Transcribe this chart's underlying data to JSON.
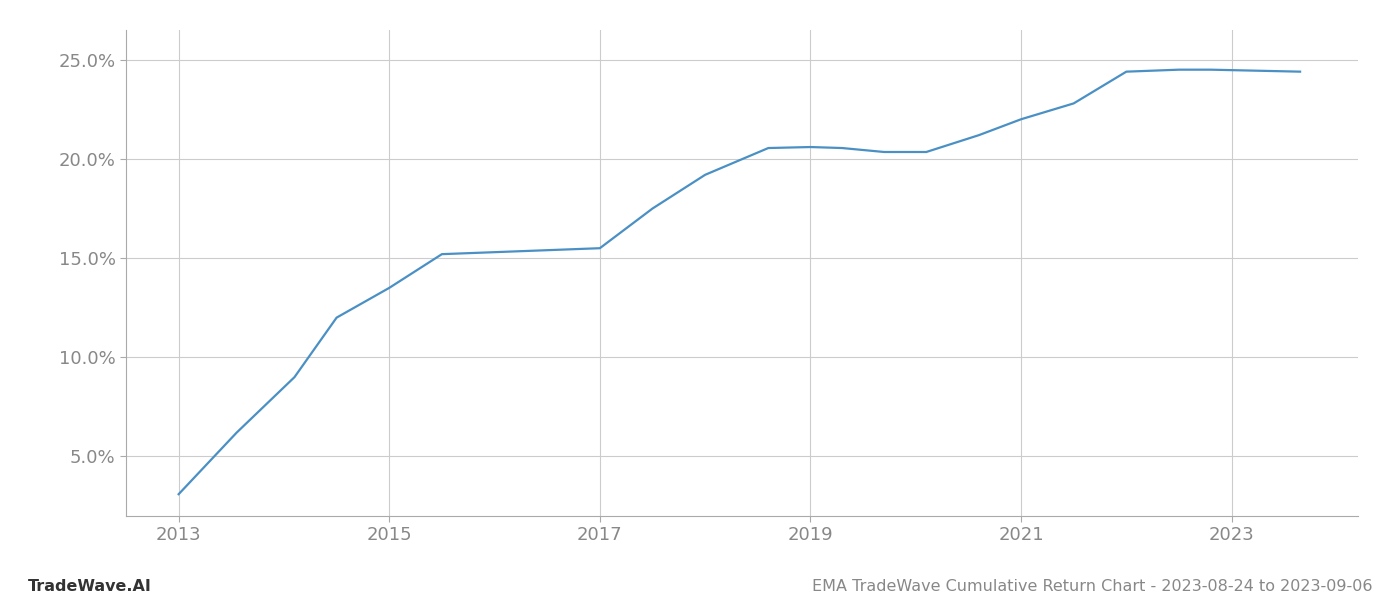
{
  "x_years": [
    2013.0,
    2013.55,
    2014.1,
    2014.5,
    2015.0,
    2015.5,
    2016.0,
    2016.5,
    2017.0,
    2017.5,
    2018.0,
    2018.6,
    2019.0,
    2019.3,
    2019.7,
    2020.1,
    2020.6,
    2021.0,
    2021.5,
    2022.0,
    2022.5,
    2022.8,
    2023.65
  ],
  "y_values": [
    3.1,
    6.2,
    9.0,
    12.0,
    13.5,
    15.2,
    15.3,
    15.4,
    15.5,
    17.5,
    19.2,
    20.55,
    20.6,
    20.55,
    20.35,
    20.35,
    21.2,
    22.0,
    22.8,
    24.4,
    24.5,
    24.5,
    24.4
  ],
  "x_ticks": [
    2013,
    2015,
    2017,
    2019,
    2021,
    2023
  ],
  "y_ticks": [
    5.0,
    10.0,
    15.0,
    20.0,
    25.0
  ],
  "y_tick_labels": [
    "5.0%",
    "10.0%",
    "15.0%",
    "20.0%",
    "25.0%"
  ],
  "xlim": [
    2012.5,
    2024.2
  ],
  "ylim": [
    2.0,
    26.5
  ],
  "line_color": "#4a90c4",
  "line_width": 1.6,
  "grid_color": "#cccccc",
  "background_color": "#ffffff",
  "footer_left": "TradeWave.AI",
  "footer_right": "EMA TradeWave Cumulative Return Chart - 2023-08-24 to 2023-09-06",
  "footer_color": "#888888",
  "footer_fontsize": 11.5,
  "tick_fontsize": 13,
  "spine_color": "#aaaaaa"
}
